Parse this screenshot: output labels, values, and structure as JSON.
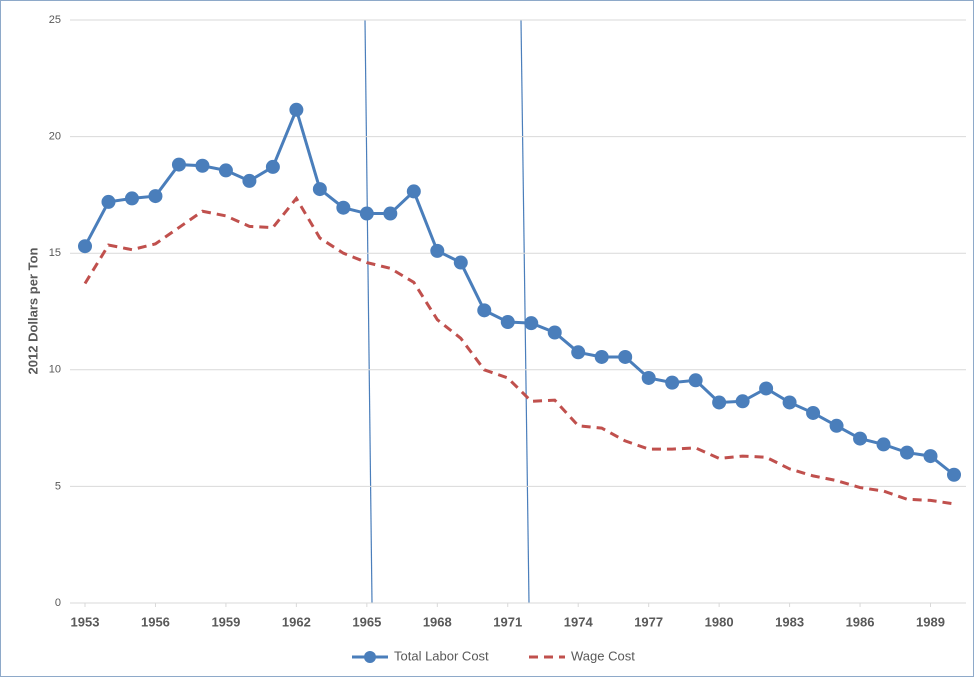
{
  "chart_data": {
    "type": "line",
    "y_label": "2012 Dollars per Ton",
    "x": [
      1953,
      1954,
      1955,
      1956,
      1957,
      1958,
      1959,
      1960,
      1961,
      1962,
      1963,
      1964,
      1965,
      1966,
      1967,
      1968,
      1969,
      1970,
      1971,
      1972,
      1973,
      1974,
      1975,
      1976,
      1977,
      1978,
      1979,
      1980,
      1981,
      1982,
      1983,
      1984,
      1985,
      1986,
      1987,
      1988,
      1989,
      1990
    ],
    "xlim": [
      1953,
      1990
    ],
    "xticks": [
      1953,
      1956,
      1959,
      1962,
      1965,
      1968,
      1971,
      1974,
      1977,
      1980,
      1983,
      1986,
      1989
    ],
    "ylim": [
      0,
      25
    ],
    "yticks": [
      0,
      5,
      10,
      15,
      20,
      25
    ],
    "grid": true,
    "legend": "bottom",
    "series": [
      {
        "name": "Total Labor Cost",
        "color": "#4a7ebb",
        "style": "solid-markers",
        "values": [
          15.3,
          17.2,
          17.35,
          17.45,
          18.8,
          18.75,
          18.55,
          18.1,
          18.7,
          21.15,
          17.75,
          16.95,
          16.7,
          16.7,
          17.65,
          15.1,
          14.6,
          12.55,
          12.05,
          12.0,
          11.6,
          10.75,
          10.55,
          10.55,
          9.65,
          9.45,
          9.55,
          8.6,
          8.65,
          9.2,
          8.6,
          8.15,
          7.6,
          7.05,
          6.8,
          6.45,
          6.3,
          5.5
        ]
      },
      {
        "name": "Wage Cost",
        "color": "#c0504d",
        "style": "dashed",
        "values": [
          13.7,
          15.35,
          15.15,
          15.4,
          16.1,
          16.8,
          16.6,
          16.15,
          16.1,
          17.35,
          15.65,
          15.0,
          14.6,
          14.35,
          13.75,
          12.15,
          11.35,
          10.0,
          9.65,
          8.65,
          8.7,
          7.6,
          7.5,
          6.95,
          6.6,
          6.6,
          6.65,
          6.2,
          6.3,
          6.25,
          5.75,
          5.45,
          5.25,
          4.95,
          4.8,
          4.45,
          4.4,
          4.25
        ]
      }
    ]
  }
}
